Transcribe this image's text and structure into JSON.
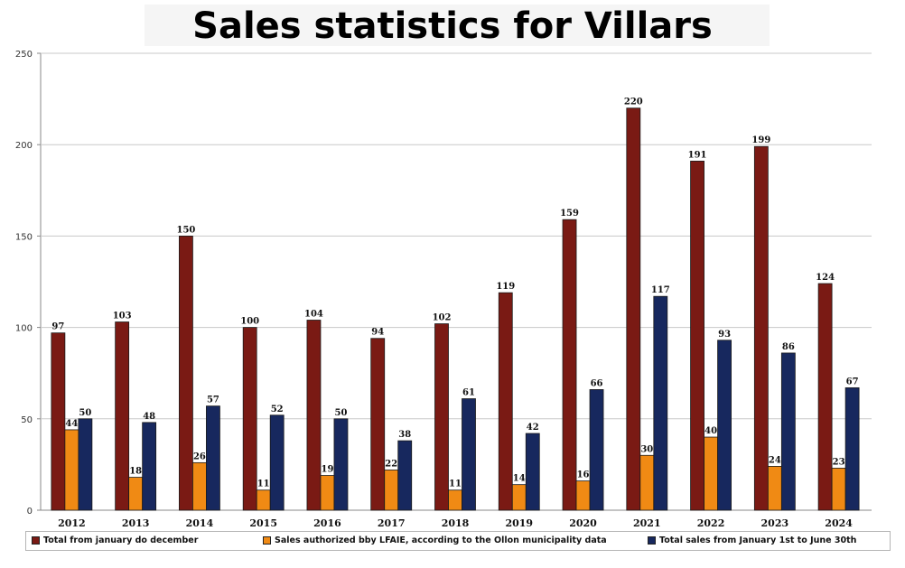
{
  "title": "Sales statistics for Villars",
  "colors": {
    "total_year": "#7a1a14",
    "lfaie": "#f08a14",
    "half_year": "#17285e"
  },
  "chart_data": {
    "type": "bar",
    "title": "Sales statistics for Villars",
    "xlabel": "",
    "ylabel": "",
    "ylim": [
      0,
      250
    ],
    "yticks": [
      0,
      50,
      100,
      150,
      200,
      250
    ],
    "grid": true,
    "legend_position": "bottom",
    "categories": [
      "2012",
      "2013",
      "2014",
      "2015",
      "2016",
      "2017",
      "2018",
      "2019",
      "2020",
      "2021",
      "2022",
      "2023",
      "2024"
    ],
    "series": [
      {
        "name": "Total from january do december",
        "color": "#7a1a14",
        "values": [
          97,
          103,
          150,
          100,
          104,
          94,
          102,
          119,
          159,
          220,
          191,
          199,
          124
        ]
      },
      {
        "name": "Sales authorized bby LFAIE, according to the Ollon municipality data",
        "color": "#f08a14",
        "values": [
          44,
          18,
          26,
          11,
          19,
          22,
          11,
          14,
          16,
          30,
          40,
          24,
          23
        ]
      },
      {
        "name": "Total sales from January 1st to June 30th",
        "color": "#17285e",
        "values": [
          50,
          48,
          57,
          52,
          50,
          38,
          61,
          42,
          66,
          117,
          93,
          86,
          67
        ]
      }
    ]
  }
}
